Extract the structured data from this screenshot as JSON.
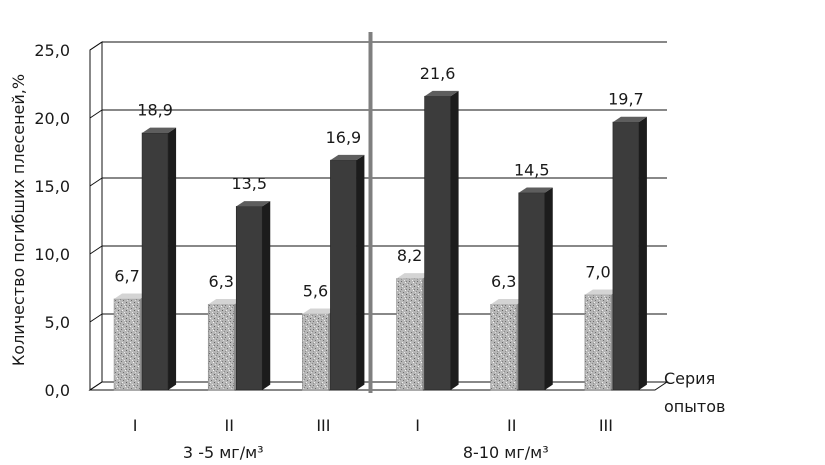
{
  "chart_data": {
    "type": "bar",
    "ylabel": "Количество погибших плесеней,%",
    "xlabel": "Серия опытов",
    "xlabel_lines": [
      "Серия",
      "опытов"
    ],
    "ylim": [
      0,
      25
    ],
    "y_ticks": [
      "0,0",
      "5,0",
      "10,0",
      "15,0",
      "20,0",
      "25,0"
    ],
    "y_tick_values": [
      0,
      5,
      10,
      15,
      20,
      25
    ],
    "grid": true,
    "style": "3d",
    "groups": [
      {
        "label": "3 -5 мг/м³",
        "categories": [
          "I",
          "II",
          "III"
        ],
        "series": [
          {
            "values": [
              6.7,
              6.3,
              5.6
            ],
            "labels": [
              "6,7",
              "6,3",
              "5,6"
            ],
            "color": "#b4b4b4",
            "pattern": "speckled"
          },
          {
            "values": [
              18.9,
              13.5,
              16.9
            ],
            "labels": [
              "18,9",
              "13,5",
              "16,9"
            ],
            "color": "#3c3c3c",
            "pattern": "solid"
          }
        ]
      },
      {
        "label": "8-10 мг/м³",
        "categories": [
          "I",
          "II",
          "III"
        ],
        "series": [
          {
            "values": [
              8.2,
              6.3,
              7.0
            ],
            "labels": [
              "8,2",
              "6,3",
              "7,0"
            ],
            "color": "#b4b4b4",
            "pattern": "speckled"
          },
          {
            "values": [
              21.6,
              14.5,
              19.7
            ],
            "labels": [
              "21,6",
              "14,5",
              "19,7"
            ],
            "color": "#3c3c3c",
            "pattern": "solid"
          }
        ]
      }
    ],
    "separator_color": "#7f7f7f"
  }
}
